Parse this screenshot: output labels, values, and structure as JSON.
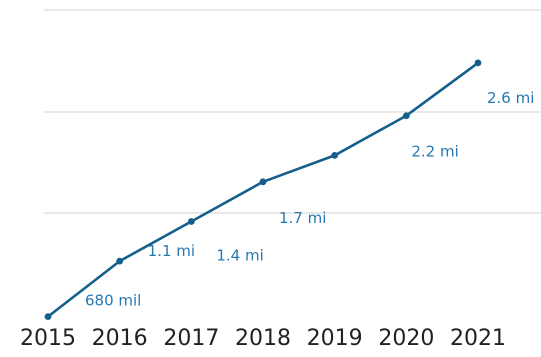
{
  "colors": {
    "line": "#155f8c",
    "label": "#2878b0",
    "grid": "#dcdcdc",
    "axis_text": "#222222"
  },
  "chart_data": {
    "type": "line",
    "title": "",
    "xlabel": "",
    "ylabel": "",
    "categories": [
      "2015",
      "2016",
      "2017",
      "2018",
      "2019",
      "2020",
      "2021"
    ],
    "values": [
      680000,
      1100000,
      1400000,
      1700000,
      1900000,
      2200000,
      2600000
    ],
    "data_labels": [
      "680 mil",
      "1.1 mi",
      "1.4 mi",
      "1.7 mi",
      "",
      "2.2 mi",
      "2.6 mi"
    ],
    "ylim": [
      700000,
      3000000
    ],
    "grid": true,
    "legend": "none"
  }
}
